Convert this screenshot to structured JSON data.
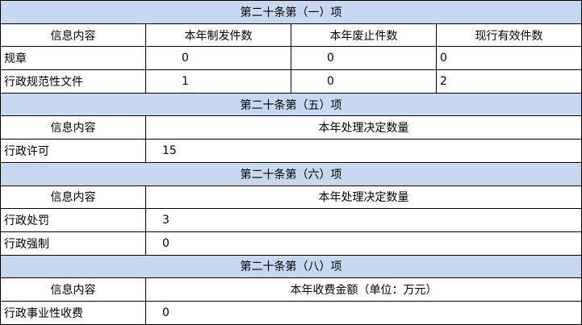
{
  "section1": {
    "title": "第二十条第（一）项",
    "headers": [
      "信息内容",
      "本年制发件数",
      "本年废止件数",
      "现行有效件数"
    ],
    "rows": [
      {
        "label": "规章",
        "values": [
          "0",
          "0",
          "0"
        ]
      },
      {
        "label": "行政规范性文件",
        "values": [
          "1",
          "0",
          "2"
        ]
      }
    ]
  },
  "section5": {
    "title": "第二十条第（五）项",
    "headers": [
      "信息内容",
      "本年处理决定数量"
    ],
    "rows": [
      {
        "label": "行政许可",
        "value": "15"
      }
    ]
  },
  "section6": {
    "title": "第二十条第（六）项",
    "headers": [
      "信息内容",
      "本年处理决定数量"
    ],
    "rows": [
      {
        "label": "行政处罚",
        "value": "3"
      },
      {
        "label": "行政强制",
        "value": "0"
      }
    ]
  },
  "section8": {
    "title": "第二十条第（八）项",
    "headers": [
      "信息内容",
      "本年收费金额（单位：万元）"
    ],
    "rows": [
      {
        "label": "行政事业性收费",
        "value": "0"
      }
    ]
  },
  "colors": {
    "section_header_bg": "#c6d9f1",
    "border": "#000000"
  }
}
